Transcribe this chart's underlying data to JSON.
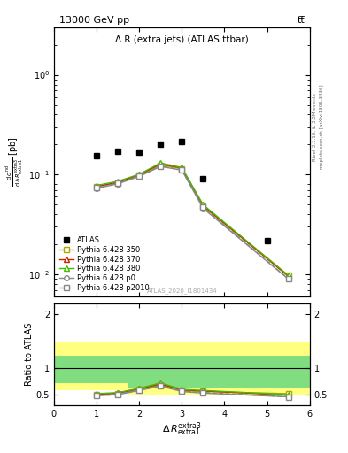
{
  "title_top": "13000 GeV pp",
  "title_right": "tt̅",
  "plot_title": "Δ R (extra jets) (ATLAS ttbar)",
  "watermark": "ATLAS_2020_I1801434",
  "right_label_top": "Rivet 3.1.10, ≥ 3.3M events",
  "right_label_bot": "mcplots.cern.ch [arXiv:1306.3436]",
  "ylabel_main": "dσ   dσⁿᵈ",
  "ylabel_main2": "dΔR_extra1^extra3  [pb]",
  "atlas_x": [
    1.0,
    1.5,
    2.0,
    2.5,
    3.0,
    3.5,
    5.0
  ],
  "atlas_y": [
    0.155,
    0.172,
    0.168,
    0.2,
    0.215,
    0.092,
    0.022
  ],
  "mc_x": [
    1.0,
    1.5,
    2.0,
    2.5,
    3.0,
    3.5,
    5.5
  ],
  "py350_y": [
    0.076,
    0.083,
    0.098,
    0.125,
    0.115,
    0.048,
    0.0098
  ],
  "py370_y": [
    0.076,
    0.084,
    0.1,
    0.128,
    0.117,
    0.049,
    0.0096
  ],
  "py380_y": [
    0.078,
    0.086,
    0.101,
    0.131,
    0.118,
    0.05,
    0.0098
  ],
  "py_p0_y": [
    0.073,
    0.081,
    0.096,
    0.121,
    0.111,
    0.046,
    0.009
  ],
  "py_p2010_y": [
    0.074,
    0.082,
    0.097,
    0.122,
    0.112,
    0.047,
    0.0091
  ],
  "ratio_x": [
    1.0,
    1.5,
    2.0,
    2.5,
    3.0,
    3.5,
    5.5
  ],
  "ratio_py350": [
    0.5,
    0.52,
    0.6,
    0.68,
    0.58,
    0.56,
    0.52
  ],
  "ratio_py370": [
    0.5,
    0.53,
    0.61,
    0.7,
    0.59,
    0.57,
    0.49
  ],
  "ratio_py380": [
    0.52,
    0.54,
    0.62,
    0.72,
    0.6,
    0.58,
    0.5
  ],
  "ratio_py_p0": [
    0.48,
    0.5,
    0.58,
    0.66,
    0.56,
    0.53,
    0.46
  ],
  "ratio_py_p2010": [
    0.49,
    0.51,
    0.59,
    0.67,
    0.57,
    0.54,
    0.46
  ],
  "color_py350": "#aaaa00",
  "color_py370": "#cc2200",
  "color_py380": "#44bb00",
  "color_py_p0": "#888888",
  "color_py_p2010": "#888888",
  "ylim_main": [
    0.006,
    3.0
  ],
  "ylim_ratio": [
    0.3,
    2.2
  ],
  "xlim": [
    0.0,
    6.0
  ],
  "band_edges": [
    0.0,
    1.25,
    1.75,
    2.25,
    2.75,
    3.25,
    6.0
  ],
  "band_green_lo": [
    0.72,
    0.72,
    0.62,
    0.62,
    0.62,
    0.62,
    0.62
  ],
  "band_green_hi": [
    1.22,
    1.22,
    1.22,
    1.22,
    1.22,
    1.22,
    1.22
  ],
  "band_yellow_lo": [
    0.58,
    0.58,
    0.5,
    0.5,
    0.5,
    0.5,
    0.5
  ],
  "band_yellow_hi": [
    1.48,
    1.48,
    1.48,
    1.48,
    1.48,
    1.48,
    1.48
  ]
}
